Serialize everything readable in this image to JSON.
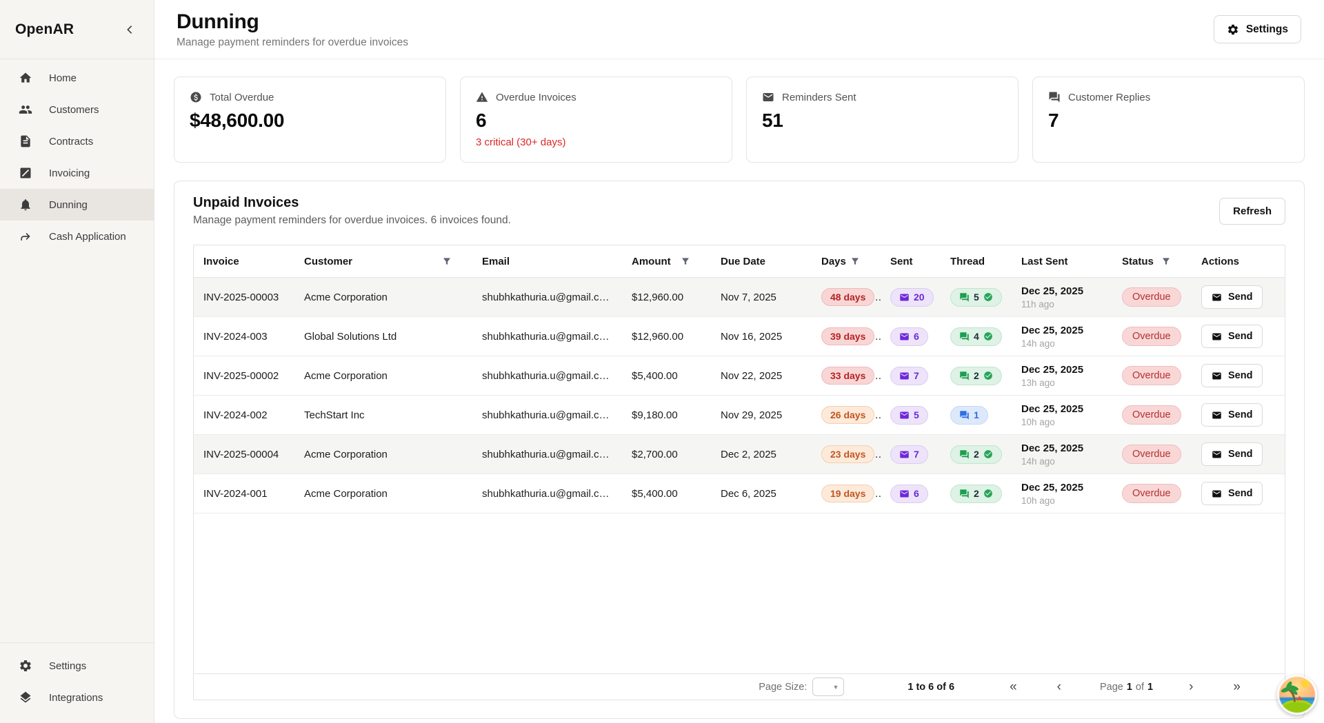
{
  "app": {
    "name": "OpenAR"
  },
  "sidebar": {
    "items": [
      {
        "label": "Home",
        "icon": "home",
        "active": false
      },
      {
        "label": "Customers",
        "icon": "users",
        "active": false
      },
      {
        "label": "Contracts",
        "icon": "document",
        "active": false
      },
      {
        "label": "Invoicing",
        "icon": "invoice-pen",
        "active": false
      },
      {
        "label": "Dunning",
        "icon": "bell",
        "active": true
      },
      {
        "label": "Cash Application",
        "icon": "cash-arrow",
        "active": false
      }
    ],
    "footer_items": [
      {
        "label": "Settings",
        "icon": "gear"
      },
      {
        "label": "Integrations",
        "icon": "layers"
      }
    ]
  },
  "header": {
    "title": "Dunning",
    "subtitle": "Manage payment reminders for overdue invoices",
    "settings_button": "Settings"
  },
  "stats": [
    {
      "icon": "dollar-circle",
      "label": "Total Overdue",
      "value": "$48,600.00",
      "note": ""
    },
    {
      "icon": "warning-triangle",
      "label": "Overdue Invoices",
      "value": "6",
      "note": "3 critical (30+ days)"
    },
    {
      "icon": "mail",
      "label": "Reminders Sent",
      "value": "51",
      "note": ""
    },
    {
      "icon": "chat-bubbles",
      "label": "Customer Replies",
      "value": "7",
      "note": ""
    }
  ],
  "panel": {
    "title": "Unpaid Invoices",
    "subtitle": "Manage payment reminders for overdue invoices. 6 invoices found.",
    "refresh_button": "Refresh",
    "table": {
      "columns": [
        {
          "label": "Invoice",
          "filter": false
        },
        {
          "label": "Customer",
          "filter": true
        },
        {
          "label": "Email",
          "filter": false
        },
        {
          "label": "Amount",
          "filter": true
        },
        {
          "label": "Due Date",
          "filter": false
        },
        {
          "label": "Days",
          "filter": true
        },
        {
          "label": "Sent",
          "filter": false
        },
        {
          "label": "Thread",
          "filter": false
        },
        {
          "label": "Last Sent",
          "filter": false
        },
        {
          "label": "Status",
          "filter": true
        },
        {
          "label": "Actions",
          "filter": false
        }
      ],
      "rows": [
        {
          "invoice": "INV-2025-00003",
          "customer": "Acme Corporation",
          "email": "shubhkathuria.u@gmail.c…",
          "amount": "$12,960.00",
          "due_date": "Nov 7, 2025",
          "days": "48 days",
          "days_severity": "critical",
          "sent": "20",
          "thread": "5",
          "thread_state": "replied",
          "last_sent_date": "Dec 25, 2025",
          "last_sent_ago": "11h ago",
          "status": "Overdue",
          "action": "Send",
          "shaded": true
        },
        {
          "invoice": "INV-2024-003",
          "customer": "Global Solutions Ltd",
          "email": "shubhkathuria.u@gmail.c…",
          "amount": "$12,960.00",
          "due_date": "Nov 16, 2025",
          "days": "39 days",
          "days_severity": "critical",
          "sent": "6",
          "thread": "4",
          "thread_state": "replied",
          "last_sent_date": "Dec 25, 2025",
          "last_sent_ago": "14h ago",
          "status": "Overdue",
          "action": "Send",
          "shaded": false
        },
        {
          "invoice": "INV-2025-00002",
          "customer": "Acme Corporation",
          "email": "shubhkathuria.u@gmail.c…",
          "amount": "$5,400.00",
          "due_date": "Nov 22, 2025",
          "days": "33 days",
          "days_severity": "critical",
          "sent": "7",
          "thread": "2",
          "thread_state": "replied",
          "last_sent_date": "Dec 25, 2025",
          "last_sent_ago": "13h ago",
          "status": "Overdue",
          "action": "Send",
          "shaded": false
        },
        {
          "invoice": "INV-2024-002",
          "customer": "TechStart Inc",
          "email": "shubhkathuria.u@gmail.c…",
          "amount": "$9,180.00",
          "due_date": "Nov 29, 2025",
          "days": "26 days",
          "days_severity": "warning",
          "sent": "5",
          "thread": "1",
          "thread_state": "awaiting",
          "last_sent_date": "Dec 25, 2025",
          "last_sent_ago": "10h ago",
          "status": "Overdue",
          "action": "Send",
          "shaded": false
        },
        {
          "invoice": "INV-2025-00004",
          "customer": "Acme Corporation",
          "email": "shubhkathuria.u@gmail.c…",
          "amount": "$2,700.00",
          "due_date": "Dec 2, 2025",
          "days": "23 days",
          "days_severity": "warning",
          "sent": "7",
          "thread": "2",
          "thread_state": "replied",
          "last_sent_date": "Dec 25, 2025",
          "last_sent_ago": "14h ago",
          "status": "Overdue",
          "action": "Send",
          "shaded": true
        },
        {
          "invoice": "INV-2024-001",
          "customer": "Acme Corporation",
          "email": "shubhkathuria.u@gmail.c…",
          "amount": "$5,400.00",
          "due_date": "Dec 6, 2025",
          "days": "19 days",
          "days_severity": "warning",
          "sent": "6",
          "thread": "2",
          "thread_state": "replied",
          "last_sent_date": "Dec 25, 2025",
          "last_sent_ago": "10h ago",
          "status": "Overdue",
          "action": "Send",
          "shaded": false
        }
      ]
    },
    "pagination": {
      "page_size_label": "Page Size:",
      "range_text": "1 to 6 of 6",
      "page_word": "Page",
      "page_current": "1",
      "of_word": "of",
      "page_total": "1",
      "first_icon": "«",
      "prev_icon": "‹",
      "next_icon": "›",
      "last_icon": "»"
    }
  },
  "colors": {
    "critical_badge_text": "#b42323",
    "critical_badge_bg": "#f9d6d6",
    "warning_badge_text": "#c05621",
    "warning_badge_bg": "#fdeada",
    "sent_badge_text": "#6d28d9",
    "sent_badge_bg": "#ede4fa",
    "thread_replied_icon": "#1d9e50",
    "thread_awaiting_icon": "#2f6fe4",
    "status_overdue_text": "#b53030",
    "status_overdue_bg": "#f9d7d7",
    "alert_note_text": "#dc2626"
  }
}
